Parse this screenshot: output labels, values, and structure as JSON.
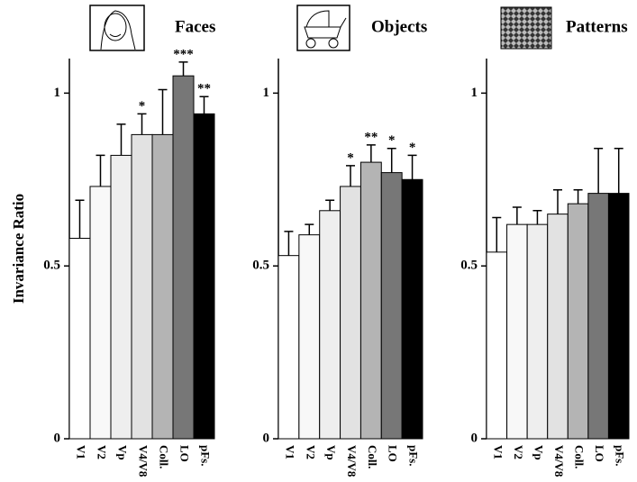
{
  "chart_data": [
    {
      "type": "bar",
      "title": "Faces",
      "ylabel": "Invariance Ratio",
      "categories": [
        "V1",
        "V2",
        "Vp",
        "V4/V8",
        "Coll.",
        "LO",
        "pFs."
      ],
      "values": [
        0.58,
        0.73,
        0.82,
        0.88,
        0.88,
        1.05,
        0.94
      ],
      "errors": [
        0.11,
        0.09,
        0.09,
        0.06,
        0.13,
        0.04,
        0.05
      ],
      "annotations": [
        null,
        null,
        null,
        "*",
        null,
        "***",
        "**"
      ],
      "colors": [
        "#ffffff",
        "#f8f8f8",
        "#eeeeee",
        "#e2e2e2",
        "#b4b4b4",
        "#777777",
        "#000000"
      ],
      "ylim": [
        0,
        1.1
      ],
      "yticks": [
        0,
        0.5,
        1
      ]
    },
    {
      "type": "bar",
      "title": "Objects",
      "categories": [
        "V1",
        "V2",
        "Vp",
        "V4/V8",
        "Coll.",
        "LO",
        "pFs."
      ],
      "values": [
        0.53,
        0.59,
        0.66,
        0.73,
        0.8,
        0.77,
        0.75
      ],
      "errors": [
        0.07,
        0.03,
        0.03,
        0.06,
        0.05,
        0.07,
        0.07
      ],
      "annotations": [
        null,
        null,
        null,
        "*",
        "**",
        "*",
        "*"
      ],
      "colors": [
        "#ffffff",
        "#f8f8f8",
        "#eeeeee",
        "#e2e2e2",
        "#b4b4b4",
        "#777777",
        "#000000"
      ],
      "ylim": [
        0,
        1.1
      ],
      "yticks": [
        0,
        0.5,
        1
      ]
    },
    {
      "type": "bar",
      "title": "Patterns",
      "categories": [
        "V1",
        "V2",
        "Vp",
        "V4/V8",
        "Coll.",
        "LO",
        "pFs."
      ],
      "values": [
        0.54,
        0.62,
        0.62,
        0.65,
        0.68,
        0.71,
        0.71
      ],
      "errors": [
        0.1,
        0.05,
        0.04,
        0.07,
        0.04,
        0.13,
        0.13
      ],
      "annotations": [
        null,
        null,
        null,
        null,
        null,
        null,
        null
      ],
      "colors": [
        "#ffffff",
        "#f8f8f8",
        "#eeeeee",
        "#e2e2e2",
        "#b4b4b4",
        "#777777",
        "#000000"
      ],
      "ylim": [
        0,
        1.1
      ],
      "yticks": [
        0,
        0.5,
        1
      ]
    }
  ]
}
